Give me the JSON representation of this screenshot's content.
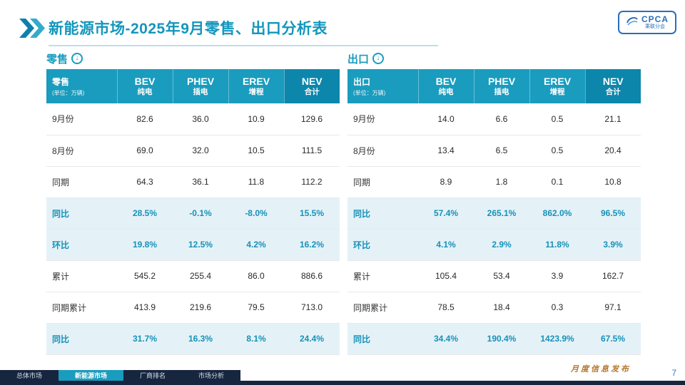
{
  "header": {
    "title": "新能源市场-2025年9月零售、出口分析表",
    "logo": {
      "name": "CPCA",
      "sub": "乘联分会"
    }
  },
  "icons": {
    "circle_down": "↓"
  },
  "watermark": "CPCA 乘联分会",
  "tables": [
    {
      "section_label": "零售",
      "header_label": "零售",
      "unit": "(单位：万辆)",
      "columns": [
        {
          "en": "BEV",
          "zh": "纯电"
        },
        {
          "en": "PHEV",
          "zh": "插电"
        },
        {
          "en": "EREV",
          "zh": "增程"
        },
        {
          "en": "NEV",
          "zh": "合计"
        }
      ],
      "rows": [
        {
          "label": "9月份",
          "values": [
            "82.6",
            "36.0",
            "10.9",
            "129.6"
          ],
          "highlight": false
        },
        {
          "label": "8月份",
          "values": [
            "69.0",
            "32.0",
            "10.5",
            "111.5"
          ],
          "highlight": false
        },
        {
          "label": "同期",
          "values": [
            "64.3",
            "36.1",
            "11.8",
            "112.2"
          ],
          "highlight": false
        },
        {
          "label": "同比",
          "values": [
            "28.5%",
            "-0.1%",
            "-8.0%",
            "15.5%"
          ],
          "highlight": true
        },
        {
          "label": "环比",
          "values": [
            "19.8%",
            "12.5%",
            "4.2%",
            "16.2%"
          ],
          "highlight": true
        },
        {
          "label": "累计",
          "values": [
            "545.2",
            "255.4",
            "86.0",
            "886.6"
          ],
          "highlight": false
        },
        {
          "label": "同期累计",
          "values": [
            "413.9",
            "219.6",
            "79.5",
            "713.0"
          ],
          "highlight": false
        },
        {
          "label": "同比",
          "values": [
            "31.7%",
            "16.3%",
            "8.1%",
            "24.4%"
          ],
          "highlight": true
        }
      ]
    },
    {
      "section_label": "出口",
      "header_label": "出口",
      "unit": "(单位：万辆)",
      "columns": [
        {
          "en": "BEV",
          "zh": "纯电"
        },
        {
          "en": "PHEV",
          "zh": "插电"
        },
        {
          "en": "EREV",
          "zh": "增程"
        },
        {
          "en": "NEV",
          "zh": "合计"
        }
      ],
      "rows": [
        {
          "label": "9月份",
          "values": [
            "14.0",
            "6.6",
            "0.5",
            "21.1"
          ],
          "highlight": false
        },
        {
          "label": "8月份",
          "values": [
            "13.4",
            "6.5",
            "0.5",
            "20.4"
          ],
          "highlight": false
        },
        {
          "label": "同期",
          "values": [
            "8.9",
            "1.8",
            "0.1",
            "10.8"
          ],
          "highlight": false
        },
        {
          "label": "同比",
          "values": [
            "57.4%",
            "265.1%",
            "862.0%",
            "96.5%"
          ],
          "highlight": true
        },
        {
          "label": "环比",
          "values": [
            "4.1%",
            "2.9%",
            "11.8%",
            "3.9%"
          ],
          "highlight": true
        },
        {
          "label": "累计",
          "values": [
            "105.4",
            "53.4",
            "3.9",
            "162.7"
          ],
          "highlight": false
        },
        {
          "label": "同期累计",
          "values": [
            "78.5",
            "18.4",
            "0.3",
            "97.1"
          ],
          "highlight": false
        },
        {
          "label": "同比",
          "values": [
            "34.4%",
            "190.4%",
            "1423.9%",
            "67.5%"
          ],
          "highlight": true
        }
      ]
    }
  ],
  "footer": {
    "nav": [
      "总体市场",
      "新能源市场",
      "厂商排名",
      "市场分析"
    ],
    "active_index": 1,
    "publication": "月度信息发布",
    "page_number": "7"
  },
  "colors": {
    "accent": "#1a9cbe",
    "accent_dark": "#0d86ac",
    "highlight_bg": "#e4f2f8",
    "highlight_text": "#1791b7",
    "title": "#1496bc",
    "navy": "#16263f",
    "pub_orange": "#b5762a",
    "page_blue": "#3a77c2"
  }
}
